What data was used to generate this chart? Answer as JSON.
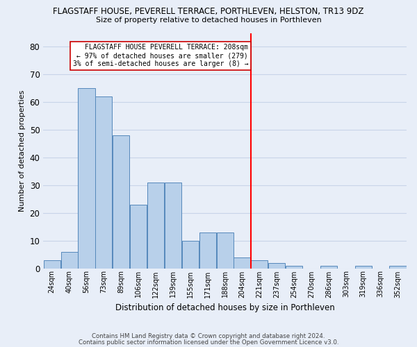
{
  "title": "FLAGSTAFF HOUSE, PEVERELL TERRACE, PORTHLEVEN, HELSTON, TR13 9DZ",
  "subtitle": "Size of property relative to detached houses in Porthleven",
  "xlabel": "Distribution of detached houses by size in Porthleven",
  "ylabel": "Number of detached properties",
  "bar_labels": [
    "24sqm",
    "40sqm",
    "56sqm",
    "73sqm",
    "89sqm",
    "106sqm",
    "122sqm",
    "139sqm",
    "155sqm",
    "171sqm",
    "188sqm",
    "204sqm",
    "221sqm",
    "237sqm",
    "254sqm",
    "270sqm",
    "286sqm",
    "303sqm",
    "319sqm",
    "336sqm",
    "352sqm"
  ],
  "bar_values": [
    3,
    6,
    65,
    62,
    48,
    23,
    31,
    31,
    10,
    13,
    13,
    4,
    3,
    2,
    1,
    0,
    1,
    0,
    1,
    0,
    1
  ],
  "bar_color": "#b8d0ea",
  "bar_edge_color": "#5588bb",
  "ylim": [
    0,
    85
  ],
  "yticks": [
    0,
    10,
    20,
    30,
    40,
    50,
    60,
    70,
    80
  ],
  "vline_color": "red",
  "annotation_line1": "FLAGSTAFF HOUSE PEVERELL TERRACE: 208sqm",
  "annotation_line2": "← 97% of detached houses are smaller (279)",
  "annotation_line3": "3% of semi-detached houses are larger (8) →",
  "footer1": "Contains HM Land Registry data © Crown copyright and database right 2024.",
  "footer2": "Contains public sector information licensed under the Open Government Licence v3.0.",
  "bg_color": "#e8eef8",
  "grid_color": "#c8d4e8"
}
